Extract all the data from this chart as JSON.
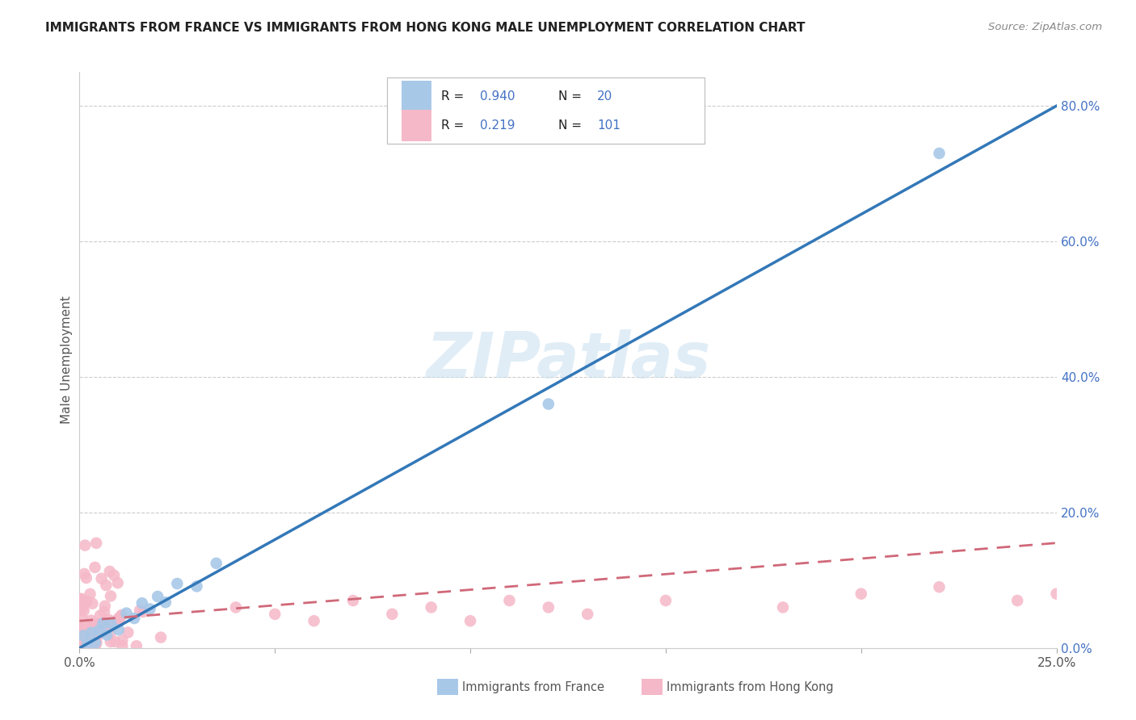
{
  "title": "IMMIGRANTS FROM FRANCE VS IMMIGRANTS FROM HONG KONG MALE UNEMPLOYMENT CORRELATION CHART",
  "source": "Source: ZipAtlas.com",
  "ylabel": "Male Unemployment",
  "france_color": "#a8c8e8",
  "france_line_color": "#3378b8",
  "hk_color": "#f5b8c8",
  "hk_line_color": "#d06878",
  "france_R": 0.94,
  "france_N": 20,
  "hk_R": 0.219,
  "hk_N": 101,
  "xlim": [
    0.0,
    0.25
  ],
  "ylim": [
    0.0,
    0.85
  ],
  "right_yticks": [
    0.0,
    0.2,
    0.4,
    0.6,
    0.8
  ],
  "right_ylabels": [
    "0.0%",
    "20.0%",
    "40.0%",
    "60.0%",
    "80.0%"
  ],
  "watermark": "ZIPatlas",
  "text_blue": "#4472c4",
  "label_color": "#555555",
  "grid_color": "#cccccc",
  "fr_line_x0": 0.0,
  "fr_line_y0": 0.0,
  "fr_line_x1": 0.25,
  "fr_line_y1": 0.8,
  "hk_line_x0": 0.0,
  "hk_line_y0": 0.04,
  "hk_line_x1": 0.25,
  "hk_line_y1": 0.155
}
